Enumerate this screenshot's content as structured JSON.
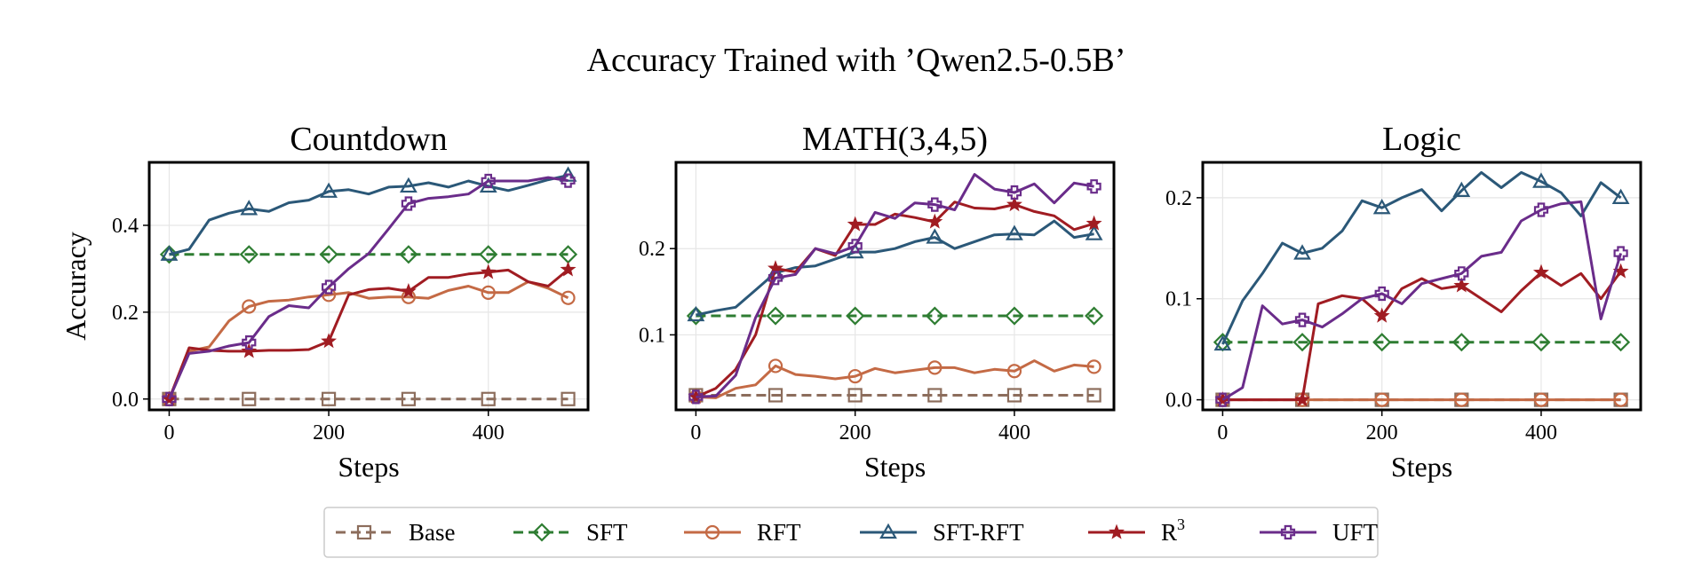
{
  "figure_title": "Accuracy Trained with ’Qwen2.5-0.5B’",
  "colors": {
    "Base": "#8c6d5c",
    "SFT": "#2e7d32",
    "RFT": "#c46a45",
    "SFT-RFT": "#2b5878",
    "R3": "#a01c22",
    "UFT": "#6a2c8a"
  },
  "markers": {
    "Base": "square",
    "SFT": "diamond",
    "RFT": "circle",
    "SFT-RFT": "triangle",
    "R3": "star",
    "UFT": "plus"
  },
  "legend": {
    "placement": "bottom-center",
    "items": [
      {
        "key": "Base",
        "label": "Base",
        "dashed": true
      },
      {
        "key": "SFT",
        "label": "SFT",
        "dashed": true
      },
      {
        "key": "RFT",
        "label": "RFT",
        "dashed": false
      },
      {
        "key": "SFT-RFT",
        "label": "SFT-RFT",
        "dashed": false
      },
      {
        "key": "R3",
        "label": "R",
        "sup": "3",
        "dashed": false
      },
      {
        "key": "UFT",
        "label": "UFT",
        "dashed": false
      }
    ]
  },
  "chart_data": [
    {
      "type": "line",
      "title": "Countdown",
      "xlabel": "Steps",
      "ylabel": "Accuracy",
      "xlim": [
        -25,
        525
      ],
      "ylim": [
        -0.025,
        0.545
      ],
      "xticks": [
        0,
        200,
        400
      ],
      "yticks": [
        0.0,
        0.2,
        0.4
      ],
      "yticklabels": [
        "0.0",
        "0.2",
        "0.4"
      ],
      "grid": true,
      "series": [
        {
          "name": "Base",
          "dashed": true,
          "x": [
            0,
            100,
            200,
            300,
            400,
            500
          ],
          "y": [
            0,
            0,
            0,
            0,
            0,
            0
          ],
          "marker_x": [
            0,
            100,
            200,
            300,
            400,
            500
          ]
        },
        {
          "name": "SFT",
          "dashed": true,
          "x": [
            0,
            100,
            200,
            300,
            400,
            500
          ],
          "y": [
            0.333,
            0.333,
            0.333,
            0.333,
            0.333,
            0.333
          ],
          "marker_x": [
            0,
            100,
            200,
            300,
            400,
            500
          ]
        },
        {
          "name": "RFT",
          "x": [
            0,
            25,
            50,
            75,
            100,
            125,
            150,
            175,
            200,
            225,
            250,
            275,
            300,
            325,
            350,
            375,
            400,
            425,
            450,
            475,
            500
          ],
          "y": [
            0.0,
            0.11,
            0.12,
            0.18,
            0.213,
            0.225,
            0.228,
            0.235,
            0.24,
            0.245,
            0.232,
            0.235,
            0.235,
            0.232,
            0.25,
            0.26,
            0.245,
            0.245,
            0.27,
            0.255,
            0.233
          ],
          "marker_x": [
            0,
            100,
            200,
            300,
            400,
            500
          ]
        },
        {
          "name": "SFT-RFT",
          "x": [
            0,
            25,
            50,
            75,
            100,
            125,
            150,
            175,
            200,
            225,
            250,
            275,
            300,
            325,
            350,
            375,
            400,
            425,
            450,
            475,
            500
          ],
          "y": [
            0.333,
            0.345,
            0.412,
            0.428,
            0.438,
            0.432,
            0.452,
            0.458,
            0.478,
            0.482,
            0.472,
            0.488,
            0.49,
            0.498,
            0.488,
            0.502,
            0.49,
            0.48,
            0.492,
            0.505,
            0.515
          ],
          "marker_x": [
            0,
            100,
            200,
            300,
            400,
            500
          ]
        },
        {
          "name": "R3",
          "x": [
            0,
            25,
            50,
            75,
            100,
            125,
            150,
            175,
            200,
            225,
            250,
            275,
            300,
            325,
            350,
            375,
            400,
            425,
            450,
            475,
            500
          ],
          "y": [
            0.0,
            0.118,
            0.112,
            0.11,
            0.11,
            0.112,
            0.112,
            0.114,
            0.133,
            0.24,
            0.252,
            0.255,
            0.248,
            0.28,
            0.28,
            0.288,
            0.292,
            0.297,
            0.27,
            0.26,
            0.298
          ],
          "marker_x": [
            0,
            100,
            200,
            300,
            400,
            500
          ]
        },
        {
          "name": "UFT",
          "x": [
            0,
            25,
            50,
            75,
            100,
            125,
            150,
            175,
            200,
            225,
            250,
            275,
            300,
            325,
            350,
            375,
            400,
            425,
            450,
            475,
            500
          ],
          "y": [
            0.0,
            0.105,
            0.11,
            0.122,
            0.13,
            0.19,
            0.215,
            0.21,
            0.258,
            0.3,
            0.335,
            0.392,
            0.45,
            0.462,
            0.466,
            0.472,
            0.502,
            0.502,
            0.502,
            0.51,
            0.503
          ],
          "marker_x": [
            0,
            100,
            200,
            300,
            400,
            500
          ]
        }
      ]
    },
    {
      "type": "line",
      "title": "MATH(3,4,5)",
      "xlabel": "Steps",
      "ylabel": "",
      "xlim": [
        -25,
        525
      ],
      "ylim": [
        0.013,
        0.3
      ],
      "xticks": [
        0,
        200,
        400
      ],
      "yticks": [
        0.1,
        0.2
      ],
      "yticklabels": [
        "0.1",
        "0.2"
      ],
      "grid": true,
      "series": [
        {
          "name": "Base",
          "dashed": true,
          "x": [
            0,
            100,
            200,
            300,
            400,
            500
          ],
          "y": [
            0.03,
            0.03,
            0.03,
            0.03,
            0.03,
            0.03
          ],
          "marker_x": [
            0,
            100,
            200,
            300,
            400,
            500
          ]
        },
        {
          "name": "SFT",
          "dashed": true,
          "x": [
            0,
            100,
            200,
            300,
            400,
            500
          ],
          "y": [
            0.122,
            0.122,
            0.122,
            0.122,
            0.122,
            0.122
          ],
          "marker_x": [
            0,
            100,
            200,
            300,
            400,
            500
          ]
        },
        {
          "name": "RFT",
          "x": [
            0,
            25,
            50,
            75,
            100,
            125,
            150,
            175,
            200,
            225,
            250,
            275,
            300,
            325,
            350,
            375,
            400,
            425,
            450,
            475,
            500
          ],
          "y": [
            0.028,
            0.027,
            0.038,
            0.042,
            0.064,
            0.054,
            0.052,
            0.049,
            0.052,
            0.061,
            0.056,
            0.059,
            0.062,
            0.062,
            0.056,
            0.06,
            0.058,
            0.07,
            0.058,
            0.065,
            0.063
          ],
          "marker_x": [
            0,
            100,
            200,
            300,
            400,
            500
          ]
        },
        {
          "name": "SFT-RFT",
          "x": [
            0,
            25,
            50,
            75,
            100,
            125,
            150,
            175,
            200,
            225,
            250,
            275,
            300,
            325,
            350,
            375,
            400,
            425,
            450,
            475,
            500
          ],
          "y": [
            0.123,
            0.128,
            0.132,
            0.152,
            0.172,
            0.178,
            0.18,
            0.188,
            0.196,
            0.196,
            0.2,
            0.208,
            0.213,
            0.2,
            0.208,
            0.216,
            0.217,
            0.216,
            0.232,
            0.213,
            0.217
          ],
          "marker_x": [
            0,
            100,
            200,
            300,
            400,
            500
          ]
        },
        {
          "name": "R3",
          "x": [
            0,
            25,
            50,
            75,
            100,
            125,
            150,
            175,
            200,
            225,
            250,
            275,
            300,
            325,
            350,
            375,
            400,
            425,
            450,
            475,
            500
          ],
          "y": [
            0.028,
            0.038,
            0.06,
            0.1,
            0.177,
            0.173,
            0.2,
            0.192,
            0.228,
            0.228,
            0.24,
            0.236,
            0.231,
            0.254,
            0.247,
            0.246,
            0.251,
            0.243,
            0.238,
            0.222,
            0.229
          ],
          "marker_x": [
            0,
            100,
            200,
            300,
            400,
            500
          ]
        },
        {
          "name": "UFT",
          "x": [
            0,
            25,
            50,
            75,
            100,
            125,
            150,
            175,
            200,
            225,
            250,
            275,
            300,
            325,
            350,
            375,
            400,
            425,
            450,
            475,
            500
          ],
          "y": [
            0.028,
            0.029,
            0.053,
            0.12,
            0.166,
            0.17,
            0.2,
            0.194,
            0.203,
            0.242,
            0.235,
            0.253,
            0.251,
            0.245,
            0.286,
            0.269,
            0.265,
            0.275,
            0.253,
            0.276,
            0.272
          ],
          "marker_x": [
            0,
            100,
            200,
            300,
            400,
            500
          ]
        }
      ]
    },
    {
      "type": "line",
      "title": "Logic",
      "xlabel": "Steps",
      "ylabel": "",
      "xlim": [
        -25,
        525
      ],
      "ylim": [
        -0.01,
        0.235
      ],
      "xticks": [
        0,
        200,
        400
      ],
      "yticks": [
        0.0,
        0.1,
        0.2
      ],
      "yticklabels": [
        "0.0",
        "0.1",
        "0.2"
      ],
      "grid": true,
      "series": [
        {
          "name": "Base",
          "dashed": true,
          "x": [
            0,
            100,
            200,
            300,
            400,
            500
          ],
          "y": [
            0,
            0,
            0,
            0,
            0,
            0
          ],
          "marker_x": [
            0,
            100,
            200,
            300,
            400,
            500
          ]
        },
        {
          "name": "SFT",
          "dashed": true,
          "x": [
            0,
            100,
            200,
            300,
            400,
            500
          ],
          "y": [
            0.057,
            0.057,
            0.057,
            0.057,
            0.057,
            0.057
          ],
          "marker_x": [
            0,
            100,
            200,
            300,
            400,
            500
          ]
        },
        {
          "name": "RFT",
          "x": [
            0,
            25,
            50,
            75,
            100,
            125,
            150,
            175,
            200,
            225,
            250,
            275,
            300,
            325,
            350,
            375,
            400,
            425,
            450,
            475,
            500
          ],
          "y": [
            0,
            0,
            0,
            0,
            0,
            0,
            0,
            0,
            0,
            0,
            0,
            0,
            0,
            0,
            0,
            0,
            0,
            0,
            0,
            0,
            0
          ],
          "marker_x": [
            0,
            100,
            200,
            300,
            400,
            500
          ]
        },
        {
          "name": "SFT-RFT",
          "x": [
            0,
            25,
            50,
            75,
            100,
            125,
            150,
            175,
            200,
            225,
            250,
            275,
            300,
            325,
            350,
            375,
            400,
            425,
            450,
            475,
            500
          ],
          "y": [
            0.055,
            0.098,
            0.125,
            0.155,
            0.145,
            0.15,
            0.167,
            0.197,
            0.19,
            0.2,
            0.208,
            0.187,
            0.207,
            0.225,
            0.21,
            0.225,
            0.216,
            0.205,
            0.182,
            0.215,
            0.2
          ],
          "marker_x": [
            0,
            100,
            200,
            300,
            400,
            500
          ]
        },
        {
          "name": "R3",
          "x": [
            0,
            25,
            50,
            75,
            100,
            120,
            150,
            175,
            200,
            225,
            250,
            275,
            300,
            325,
            350,
            375,
            400,
            425,
            450,
            475,
            500
          ],
          "y": [
            0,
            0,
            0,
            0,
            0,
            0.095,
            0.103,
            0.1,
            0.083,
            0.11,
            0.12,
            0.11,
            0.113,
            0.1,
            0.087,
            0.108,
            0.126,
            0.113,
            0.125,
            0.1,
            0.127
          ],
          "marker_x": [
            0,
            100,
            200,
            300,
            400,
            500
          ]
        },
        {
          "name": "UFT",
          "x": [
            0,
            25,
            50,
            75,
            100,
            125,
            150,
            175,
            200,
            225,
            250,
            275,
            300,
            325,
            350,
            375,
            400,
            425,
            450,
            475,
            500
          ],
          "y": [
            0,
            0.012,
            0.093,
            0.075,
            0.079,
            0.072,
            0.085,
            0.1,
            0.105,
            0.095,
            0.115,
            0.12,
            0.125,
            0.142,
            0.146,
            0.177,
            0.188,
            0.194,
            0.196,
            0.08,
            0.145
          ],
          "marker_x": [
            0,
            100,
            200,
            300,
            400,
            500
          ]
        }
      ]
    }
  ]
}
